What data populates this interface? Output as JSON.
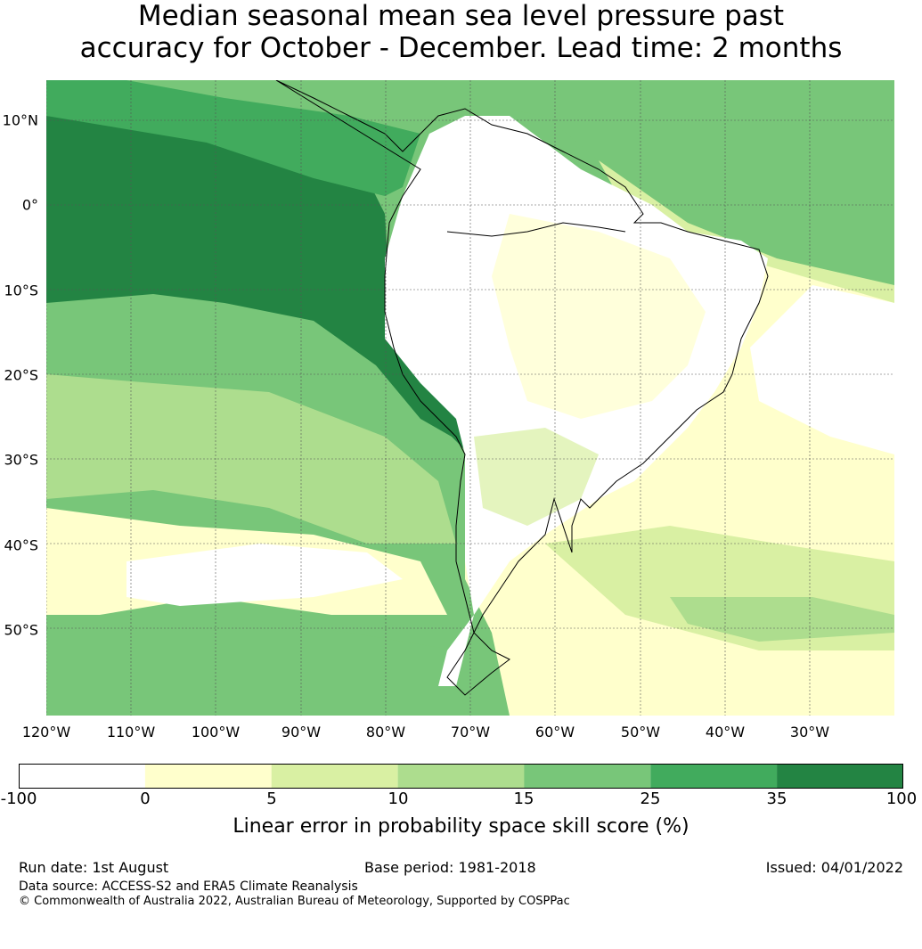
{
  "title": {
    "line1": "Median seasonal mean sea level pressure past",
    "line2": "accuracy for October - December. Lead time: 2 months"
  },
  "map": {
    "lat_labels": [
      "10°N",
      "0°",
      "10°S",
      "20°S",
      "30°S",
      "40°S",
      "50°S"
    ],
    "lon_labels": [
      "120°W",
      "110°W",
      "100°W",
      "90°W",
      "80°W",
      "70°W",
      "60°W",
      "50°W",
      "40°W",
      "30°W"
    ]
  },
  "colorbar": {
    "ticks": [
      "-100",
      "0",
      "5",
      "10",
      "15",
      "25",
      "35",
      "100"
    ],
    "colors": [
      "#ffffff",
      "#ffffcc",
      "#d9f0a3",
      "#addd8e",
      "#78c679",
      "#41ab5d",
      "#238443"
    ],
    "label": "Linear error in probability space skill score (%)"
  },
  "footer": {
    "run_date": "Run date: 1st August",
    "base_period": "Base period: 1981-2018",
    "issued": "Issued: 04/01/2022",
    "data_source": "Data source: ACCESS-S2 and ERA5 Climate Reanalysis",
    "copyright": "© Commonwealth of Australia 2022, Australian Bureau of Meteorology, Supported by COSPPac"
  }
}
